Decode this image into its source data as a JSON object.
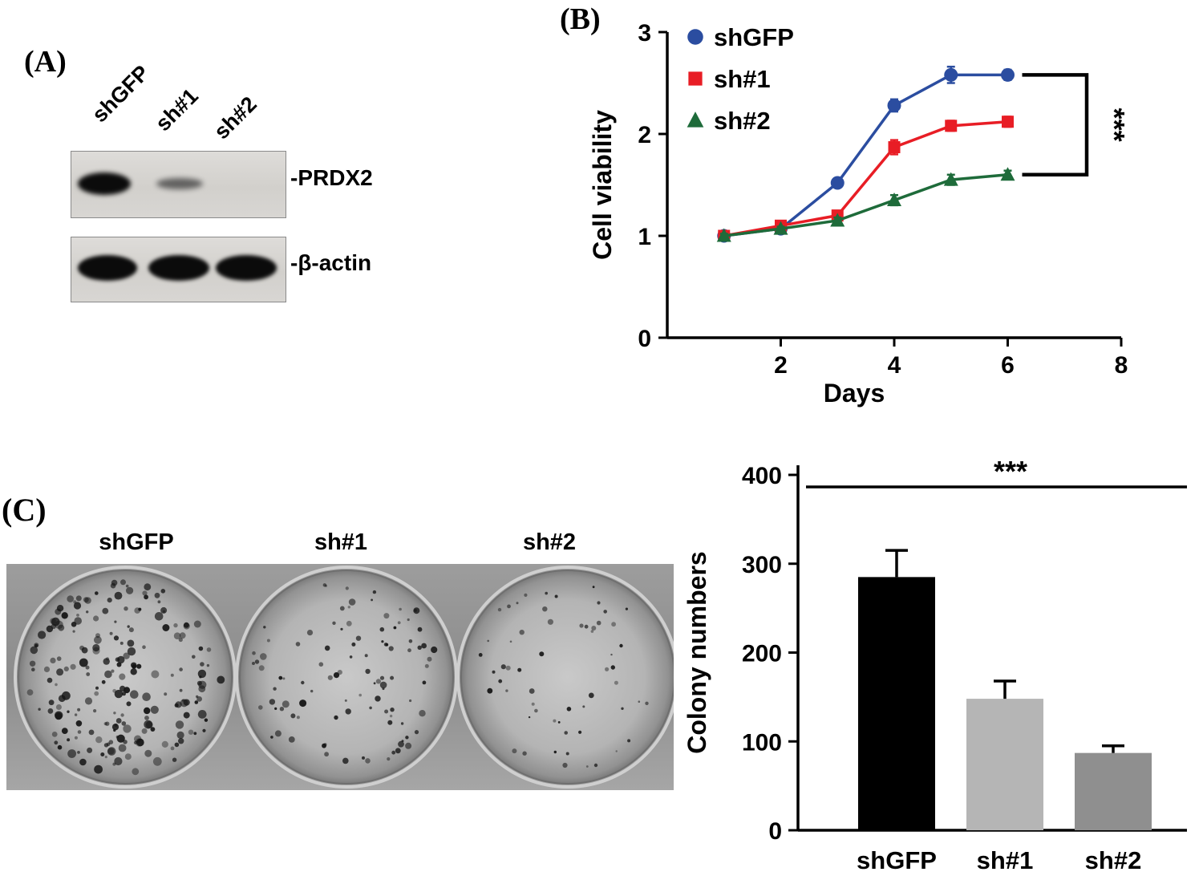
{
  "figure": {
    "background": "#ffffff",
    "panels": {
      "a": {
        "label": "(A)",
        "lane_labels": [
          "shGFP",
          "sh#1",
          "sh#2"
        ],
        "blots": [
          {
            "name": "PRDX2",
            "label": "-PRDX2",
            "bands": [
              {
                "lane": "shGFP",
                "intensity": "strong"
              },
              {
                "lane": "sh#1",
                "intensity": "weak"
              },
              {
                "lane": "sh#2",
                "intensity": "absent"
              }
            ]
          },
          {
            "name": "beta-actin",
            "label": "-β-actin",
            "bands": [
              {
                "lane": "shGFP",
                "intensity": "strong"
              },
              {
                "lane": "sh#1",
                "intensity": "strong"
              },
              {
                "lane": "sh#2",
                "intensity": "strong"
              }
            ]
          }
        ]
      },
      "b": {
        "label": "(B)"
      },
      "c": {
        "label": "(C)",
        "dish_labels": [
          "shGFP",
          "sh#1",
          "sh#2"
        ],
        "dishes": [
          {
            "label": "shGFP",
            "colony_dots": 210,
            "dot_min": 1.5,
            "dot_max": 5.5
          },
          {
            "label": "sh#1",
            "colony_dots": 100,
            "dot_min": 1.4,
            "dot_max": 4.5
          },
          {
            "label": "sh#2",
            "colony_dots": 58,
            "dot_min": 1.2,
            "dot_max": 3.8
          }
        ]
      }
    }
  },
  "chart_data": [
    {
      "type": "line",
      "title": "",
      "xlabel": "Days",
      "ylabel": "Cell viability",
      "x": [
        1,
        2,
        3,
        4,
        5,
        6
      ],
      "xlim": [
        0,
        8
      ],
      "ylim": [
        0,
        3
      ],
      "xticks": [
        2,
        4,
        6,
        8
      ],
      "yticks": [
        0,
        1,
        2,
        3
      ],
      "grid": false,
      "legend_position": "top-left",
      "annotation": "***",
      "series": [
        {
          "name": "shGFP",
          "color": "#2b4da0",
          "marker": "circle",
          "values": [
            1.0,
            1.07,
            1.52,
            2.28,
            2.58,
            2.58
          ],
          "errors": [
            0.02,
            0.02,
            0.04,
            0.06,
            0.08,
            0.05
          ]
        },
        {
          "name": "sh#1",
          "color": "#e81d25",
          "marker": "square",
          "values": [
            1.0,
            1.1,
            1.2,
            1.87,
            2.08,
            2.12
          ],
          "errors": [
            0.02,
            0.03,
            0.04,
            0.07,
            0.05,
            0.05
          ]
        },
        {
          "name": "sh#2",
          "color": "#1e6b3a",
          "marker": "triangle",
          "values": [
            1.0,
            1.07,
            1.15,
            1.35,
            1.55,
            1.6
          ],
          "errors": [
            0.02,
            0.02,
            0.03,
            0.05,
            0.05,
            0.04
          ]
        }
      ]
    },
    {
      "type": "bar",
      "categories": [
        "shGFP",
        "sh#1",
        "sh#2"
      ],
      "values": [
        285,
        148,
        87
      ],
      "errors": [
        30,
        20,
        8
      ],
      "colors": [
        "#000000",
        "#b5b5b5",
        "#8f8f8f"
      ],
      "title": "",
      "xlabel": "",
      "ylabel": "Colony numbers",
      "ylim": [
        0,
        400
      ],
      "yticks": [
        0,
        100,
        200,
        300,
        400
      ],
      "annotation": "***"
    }
  ]
}
